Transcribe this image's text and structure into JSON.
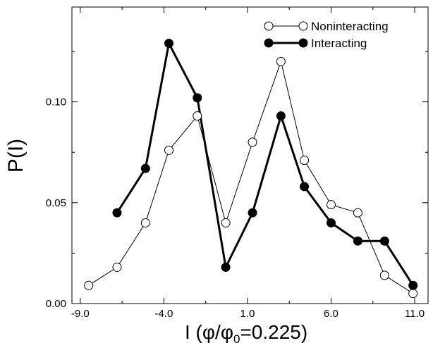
{
  "chart_data": {
    "type": "line",
    "xlabel": {
      "main": "I (",
      "phi": "φ/φ",
      "sub": "0",
      "rest": "=0.225)"
    },
    "ylabel": "P(I)",
    "xlim": [
      -9.5,
      11.8
    ],
    "ylim": [
      0.0,
      0.147
    ],
    "xticks": [
      -9.0,
      -4.0,
      1.0,
      6.0,
      11.0
    ],
    "xtick_labels": [
      "-9.0",
      "-4.0",
      "1.0",
      "6.0",
      "11.0"
    ],
    "yticks": [
      0.0,
      0.05,
      0.1
    ],
    "ytick_labels": [
      "0.00",
      "0.05",
      "0.10"
    ],
    "grid": false,
    "legend_position": "top-right",
    "series": [
      {
        "name": "Noninteracting",
        "marker": "open-circle",
        "color": "#000000",
        "x": [
          -8.5,
          -6.8,
          -5.1,
          -3.7,
          -2.0,
          -0.3,
          1.3,
          3.0,
          4.4,
          6.0,
          7.6,
          9.2,
          10.9
        ],
        "y": [
          0.009,
          0.018,
          0.04,
          0.076,
          0.093,
          0.04,
          0.08,
          0.12,
          0.071,
          0.049,
          0.045,
          0.014,
          0.005
        ]
      },
      {
        "name": "Interacting",
        "marker": "filled-circle",
        "color": "#000000",
        "x": [
          -6.8,
          -5.1,
          -3.7,
          -2.0,
          -0.3,
          1.3,
          3.0,
          4.4,
          6.0,
          7.6,
          9.2,
          10.9
        ],
        "y": [
          0.045,
          0.067,
          0.129,
          0.102,
          0.018,
          0.045,
          0.093,
          0.058,
          0.04,
          0.031,
          0.031,
          0.009
        ]
      }
    ]
  }
}
